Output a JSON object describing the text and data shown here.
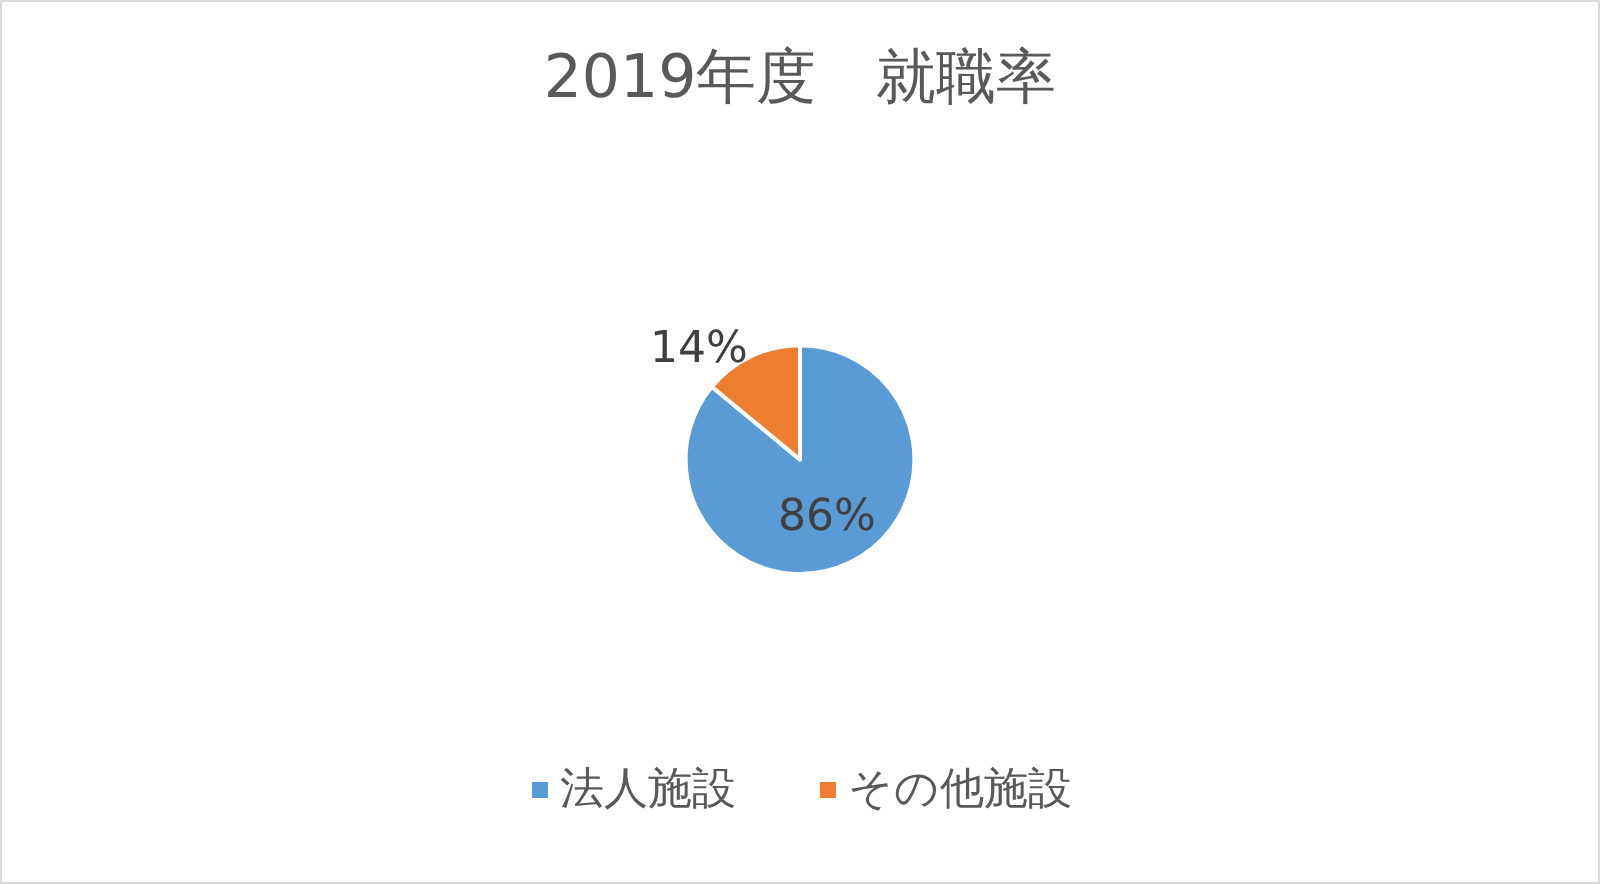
{
  "chart_data": {
    "type": "pie",
    "title": "2019年度　就職率",
    "categories": [
      "法人施設",
      "その他施設"
    ],
    "values": [
      86,
      14
    ],
    "colors": [
      "#5b9bd5",
      "#ed7d31"
    ],
    "value_labels": [
      "86%",
      "14%"
    ],
    "legend": "bottom"
  }
}
